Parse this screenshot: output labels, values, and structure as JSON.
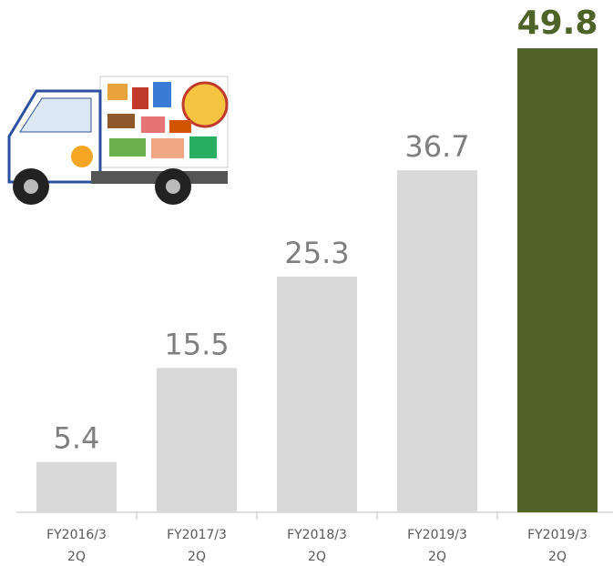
{
  "chart_data": {
    "type": "bar",
    "categories": [
      [
        "FY2016/3",
        "2Q"
      ],
      [
        "FY2017/3",
        "2Q"
      ],
      [
        "FY2018/3",
        "2Q"
      ],
      [
        "FY2019/3",
        "2Q"
      ],
      [
        "FY2019/3",
        "2Q"
      ]
    ],
    "values": [
      5.4,
      15.5,
      25.3,
      36.7,
      49.8
    ],
    "colors": [
      "#d9d9d9",
      "#d9d9d9",
      "#d9d9d9",
      "#d9d9d9",
      "#4f6228"
    ],
    "ylim": [
      0,
      50
    ]
  }
}
